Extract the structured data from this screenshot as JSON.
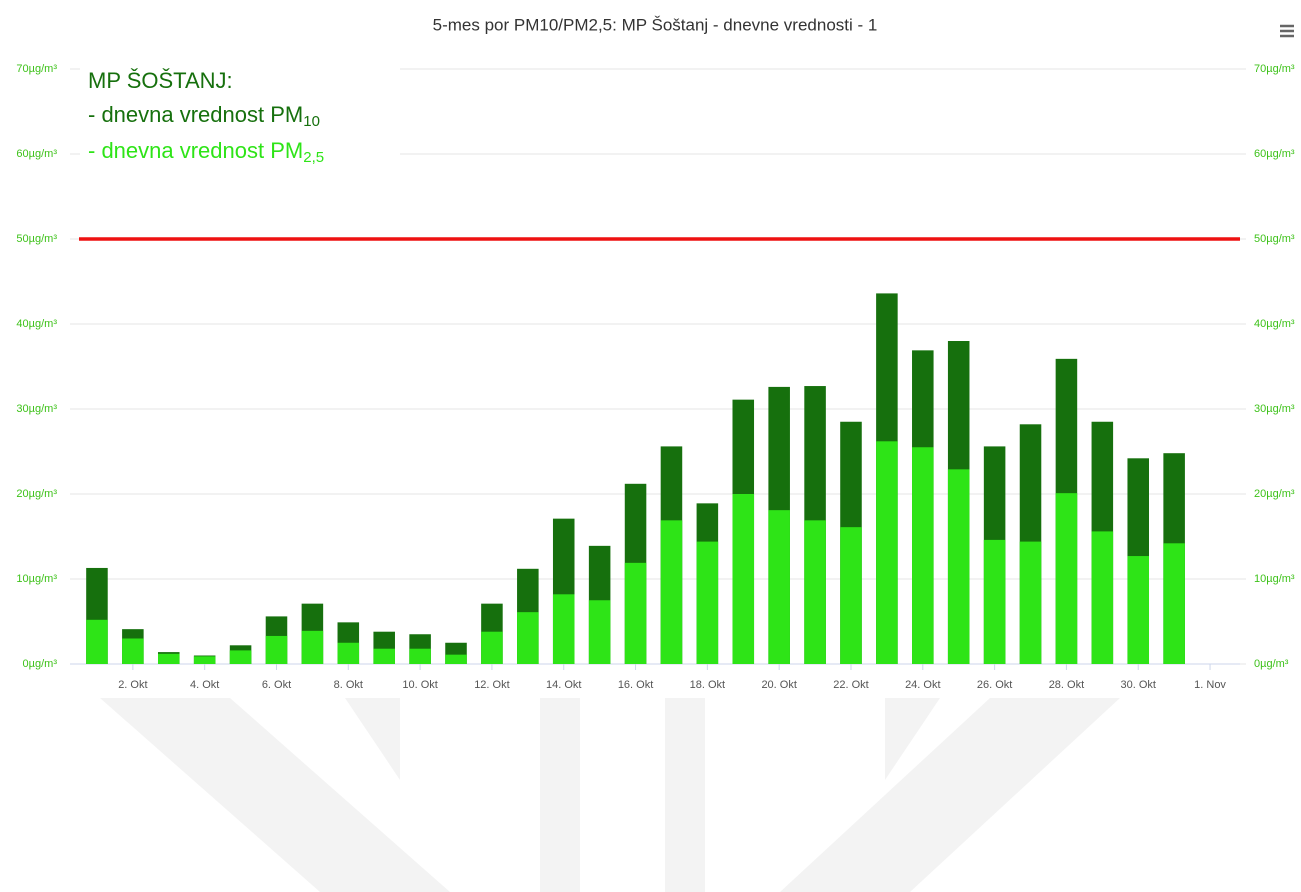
{
  "chart_data": {
    "type": "bar",
    "title": "5-mes por PM10/PM2,5: MP Šoštanj - dnevne vrednosti - 1",
    "legend_title": "MP ŠOŠTANJ:",
    "categories": [
      null,
      "2. Okt",
      null,
      "4. Okt",
      null,
      "6. Okt",
      null,
      "8. Okt",
      null,
      "10. Okt",
      null,
      "12. Okt",
      null,
      "14. Okt",
      null,
      "16. Okt",
      null,
      "18. Okt",
      null,
      "20. Okt",
      null,
      "22. Okt",
      null,
      "24. Okt",
      null,
      "26. Okt",
      null,
      "28. Okt",
      null,
      "30. Okt",
      null,
      "1. Nov"
    ],
    "series": [
      {
        "name": "- dnevna vrednost PM",
        "subscript": "10",
        "color": "#16700d",
        "values": [
          11.3,
          4.1,
          1.4,
          1.0,
          2.2,
          5.6,
          7.1,
          4.9,
          3.8,
          3.5,
          2.5,
          7.1,
          11.2,
          17.1,
          13.9,
          21.2,
          25.6,
          18.9,
          31.1,
          32.6,
          32.7,
          28.5,
          43.6,
          36.9,
          38.0,
          25.6,
          28.2,
          35.9,
          28.5,
          24.2,
          24.8,
          null
        ]
      },
      {
        "name": "- dnevna vrednost PM",
        "subscript": "2,5",
        "color": "#2ee417",
        "values": [
          5.2,
          3.0,
          1.2,
          0.9,
          1.6,
          3.3,
          3.9,
          2.5,
          1.8,
          1.8,
          1.1,
          3.8,
          6.1,
          8.2,
          7.5,
          11.9,
          16.9,
          14.4,
          20.0,
          18.1,
          16.9,
          16.1,
          26.2,
          25.5,
          22.9,
          14.6,
          14.4,
          20.1,
          15.6,
          12.7,
          14.2,
          null
        ]
      }
    ],
    "limit": 50,
    "limit_color": "#ee1111",
    "ylim": [
      0,
      70
    ],
    "yticks": [
      {
        "value": 0,
        "label": "0µg/m³"
      },
      {
        "value": 10,
        "label": "10µg/m³"
      },
      {
        "value": 20,
        "label": "20µg/m³"
      },
      {
        "value": 30,
        "label": "30µg/m³"
      },
      {
        "value": 40,
        "label": "40µg/m³"
      },
      {
        "value": 50,
        "label": "50µg/m³"
      },
      {
        "value": 60,
        "label": "60µg/m³"
      },
      {
        "value": 70,
        "label": "70µg/m³"
      }
    ],
    "y2lim": [
      0,
      70
    ],
    "y2ticks": [
      {
        "value": 0,
        "label": "0µg/m³"
      },
      {
        "value": 10,
        "label": "10µg/m³"
      },
      {
        "value": 20,
        "label": "20µg/m³"
      },
      {
        "value": 30,
        "label": "30µg/m³"
      },
      {
        "value": 40,
        "label": "40µg/m³"
      },
      {
        "value": 50,
        "label": "50µg/m³"
      },
      {
        "value": 60,
        "label": "60µg/m³"
      },
      {
        "value": 70,
        "label": "70µg/m³"
      }
    ],
    "grid": true
  }
}
